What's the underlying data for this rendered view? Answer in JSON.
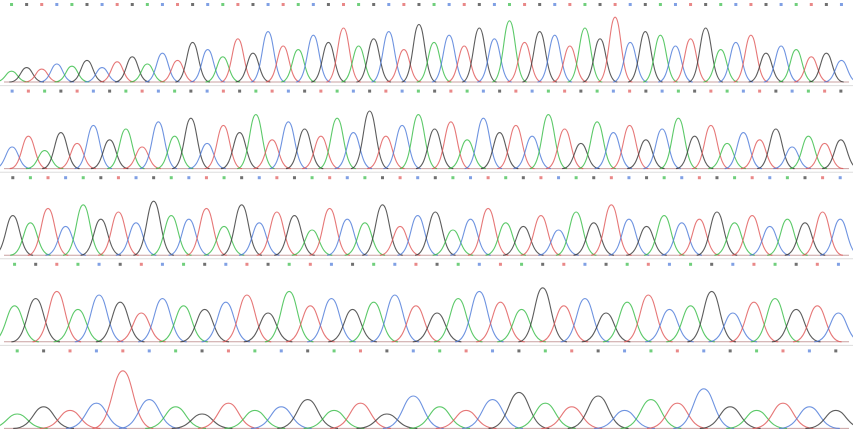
{
  "channel_colors": [
    "#33bb44",
    "#e05555",
    "#4a78d8",
    "#333333"
  ],
  "panels": [
    {
      "heights": [
        15,
        20,
        18,
        25,
        22,
        30,
        20,
        28,
        35,
        25,
        40,
        30,
        55,
        45,
        35,
        60,
        40,
        70,
        50,
        45,
        65,
        55,
        75,
        50,
        60,
        70,
        45,
        80,
        55,
        65,
        50,
        75,
        60,
        85,
        55,
        70,
        65,
        50,
        75,
        60,
        90,
        55,
        70,
        65,
        50,
        60,
        75,
        45,
        55,
        65,
        40,
        50,
        45,
        35,
        40,
        30
      ],
      "channels": [
        0,
        3,
        1,
        2,
        0,
        3,
        2,
        1,
        3,
        0,
        2,
        1,
        3,
        2,
        0,
        1,
        3,
        2,
        1,
        0,
        2,
        3,
        1,
        0,
        3,
        2,
        1,
        3,
        0,
        2,
        1,
        3,
        2,
        0,
        1,
        3,
        2,
        1,
        0,
        3,
        1,
        2,
        3,
        0,
        2,
        1,
        3,
        0,
        2,
        1,
        3,
        2,
        0,
        1,
        3,
        2
      ]
    },
    {
      "heights": [
        30,
        45,
        25,
        50,
        35,
        60,
        40,
        55,
        30,
        65,
        45,
        70,
        35,
        60,
        50,
        75,
        40,
        65,
        55,
        45,
        70,
        50,
        80,
        45,
        60,
        75,
        55,
        65,
        40,
        70,
        50,
        60,
        45,
        75,
        55,
        35,
        65,
        50,
        60,
        40,
        55,
        70,
        45,
        60,
        35,
        50,
        40,
        55,
        30,
        45,
        35,
        40
      ],
      "channels": [
        2,
        1,
        0,
        3,
        1,
        2,
        3,
        0,
        1,
        2,
        0,
        3,
        2,
        1,
        3,
        0,
        1,
        2,
        3,
        1,
        0,
        2,
        3,
        1,
        2,
        0,
        3,
        1,
        0,
        2,
        3,
        1,
        2,
        0,
        1,
        3,
        0,
        2,
        1,
        3,
        2,
        0,
        3,
        1,
        0,
        2,
        1,
        3,
        2,
        0,
        1,
        3
      ]
    },
    {
      "heights": [
        55,
        45,
        65,
        40,
        70,
        50,
        60,
        45,
        75,
        55,
        50,
        65,
        40,
        70,
        45,
        60,
        55,
        35,
        65,
        50,
        45,
        70,
        40,
        55,
        60,
        35,
        50,
        65,
        45,
        40,
        55,
        35,
        60,
        45,
        70,
        50,
        40,
        55,
        45,
        50,
        60,
        45,
        55,
        40,
        50,
        45,
        60,
        50
      ],
      "channels": [
        3,
        0,
        1,
        2,
        0,
        3,
        1,
        2,
        3,
        0,
        2,
        1,
        0,
        3,
        2,
        1,
        3,
        0,
        1,
        2,
        0,
        3,
        1,
        2,
        3,
        0,
        2,
        1,
        0,
        3,
        1,
        2,
        0,
        3,
        1,
        2,
        3,
        0,
        2,
        1,
        3,
        0,
        1,
        2,
        0,
        3,
        1,
        2
      ]
    },
    {
      "heights": [
        50,
        60,
        70,
        45,
        65,
        55,
        40,
        60,
        50,
        45,
        55,
        65,
        40,
        70,
        50,
        60,
        45,
        55,
        65,
        50,
        40,
        60,
        70,
        55,
        45,
        75,
        50,
        60,
        40,
        55,
        65,
        45,
        50,
        70,
        40,
        55,
        60,
        45,
        50,
        40
      ],
      "channels": [
        0,
        3,
        1,
        0,
        2,
        3,
        1,
        2,
        0,
        3,
        2,
        1,
        3,
        0,
        1,
        2,
        3,
        0,
        2,
        1,
        3,
        0,
        2,
        1,
        0,
        3,
        1,
        2,
        3,
        0,
        1,
        2,
        0,
        3,
        2,
        1,
        0,
        3,
        1,
        2
      ]
    },
    {
      "heights": [
        20,
        30,
        25,
        35,
        80,
        40,
        30,
        20,
        35,
        25,
        30,
        40,
        25,
        35,
        20,
        45,
        30,
        25,
        40,
        50,
        35,
        30,
        45,
        25,
        40,
        35,
        55,
        30,
        25,
        35,
        30,
        25
      ],
      "channels": [
        0,
        3,
        1,
        2,
        1,
        2,
        0,
        3,
        1,
        0,
        2,
        3,
        0,
        1,
        3,
        2,
        0,
        1,
        2,
        3,
        0,
        1,
        3,
        2,
        0,
        1,
        2,
        3,
        0,
        1,
        2,
        3
      ]
    }
  ]
}
